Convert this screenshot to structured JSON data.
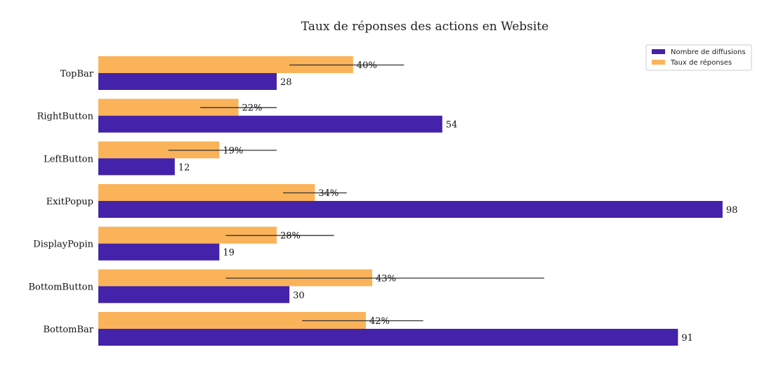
{
  "chart_data": {
    "type": "bar",
    "orientation": "horizontal",
    "title": "Taux de réponses des actions en Website",
    "categories": [
      "TopBar",
      "RightButton",
      "LeftButton",
      "ExitPopup",
      "DisplayPopin",
      "BottomButton",
      "BottomBar"
    ],
    "series": [
      {
        "name": "Nombre de diffusions",
        "color": "#4422aa",
        "values": [
          28,
          54,
          12,
          98,
          19,
          30,
          91
        ],
        "labels": [
          "28",
          "54",
          "12",
          "98",
          "19",
          "30",
          "91"
        ]
      },
      {
        "name": "Taux de réponses",
        "color": "#fbb35a",
        "values": [
          40,
          22,
          19,
          34,
          28,
          43,
          42
        ],
        "labels": [
          "40%",
          "22%",
          "19%",
          "34%",
          "28%",
          "43%",
          "42%"
        ],
        "error_low": [
          30,
          16,
          11,
          29,
          20,
          20,
          32
        ],
        "error_high": [
          48,
          28,
          28,
          39,
          37,
          70,
          51
        ]
      }
    ],
    "xlim": [
      0,
      100
    ],
    "xlabel": "",
    "ylabel": "",
    "grid": false,
    "legend_position": "top-right"
  }
}
